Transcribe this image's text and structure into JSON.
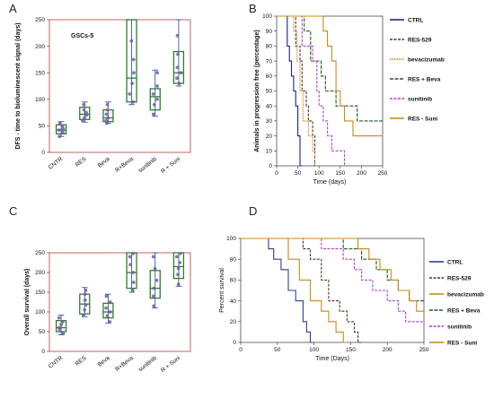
{
  "panels": {
    "a": {
      "letter": "A"
    },
    "b": {
      "letter": "B"
    },
    "c": {
      "letter": "C"
    },
    "d": {
      "letter": "D"
    }
  },
  "chart_data": [
    {
      "id": "A",
      "type": "box",
      "title": "GSCs-5",
      "ylabel": "DFS - time to bioluminescent signal (days)",
      "ylim": [
        0,
        250
      ],
      "yticks": [
        0,
        50,
        100,
        150,
        200,
        250
      ],
      "categories": [
        "CNTR",
        "RES",
        "Beva",
        "R+Beva",
        "sunitinib",
        "R + Suni"
      ],
      "boxes": [
        {
          "min": 30,
          "q1": 35,
          "median": 42,
          "q3": 52,
          "max": 58
        },
        {
          "min": 57,
          "q1": 62,
          "median": 72,
          "q3": 85,
          "max": 95
        },
        {
          "min": 55,
          "q1": 58,
          "median": 65,
          "q3": 80,
          "max": 95
        },
        {
          "min": 90,
          "q1": 95,
          "median": 140,
          "q3": 250,
          "max": 250
        },
        {
          "min": 68,
          "q1": 80,
          "median": 105,
          "q3": 120,
          "max": 155
        },
        {
          "min": 125,
          "q1": 130,
          "median": 150,
          "q3": 190,
          "max": 250
        }
      ],
      "points": [
        [
          30,
          38,
          42,
          45,
          50,
          55
        ],
        [
          60,
          65,
          70,
          75,
          80,
          90
        ],
        [
          55,
          60,
          65,
          72,
          80,
          90
        ],
        [
          95,
          110,
          130,
          150,
          175,
          210
        ],
        [
          72,
          90,
          100,
          110,
          125,
          150
        ],
        [
          130,
          140,
          150,
          160,
          185,
          220
        ]
      ],
      "box_color": "#2e7d32",
      "point_color": "#7b5aa6",
      "whisker_color": "#2a5db0"
    },
    {
      "id": "B",
      "type": "line",
      "step": true,
      "xlabel": "Time (days)",
      "ylabel": "Animals in progression free (percentage)",
      "xlim": [
        0,
        250
      ],
      "ylim": [
        0,
        100
      ],
      "xticks": [
        0,
        50,
        100,
        150,
        200,
        250
      ],
      "yticks": [
        0,
        10,
        20,
        30,
        40,
        50,
        60,
        70,
        80,
        90,
        100
      ],
      "legend_position": "right",
      "series": [
        {
          "name": "CTRL",
          "color": "#1a237e",
          "dash": "",
          "points": [
            [
              0,
              100
            ],
            [
              25,
              100
            ],
            [
              25,
              80
            ],
            [
              30,
              80
            ],
            [
              30,
              70
            ],
            [
              35,
              70
            ],
            [
              35,
              60
            ],
            [
              40,
              60
            ],
            [
              40,
              50
            ],
            [
              45,
              50
            ],
            [
              45,
              40
            ],
            [
              50,
              40
            ],
            [
              50,
              20
            ],
            [
              55,
              20
            ],
            [
              55,
              0
            ],
            [
              60,
              0
            ]
          ]
        },
        {
          "name": "RES-529",
          "color": "#4e342e",
          "dash": "3,1.5",
          "points": [
            [
              0,
              100
            ],
            [
              45,
              100
            ],
            [
              45,
              80
            ],
            [
              55,
              80
            ],
            [
              55,
              70
            ],
            [
              60,
              70
            ],
            [
              60,
              50
            ],
            [
              70,
              50
            ],
            [
              70,
              40
            ],
            [
              75,
              40
            ],
            [
              75,
              30
            ],
            [
              85,
              30
            ],
            [
              85,
              20
            ],
            [
              90,
              20
            ],
            [
              90,
              0
            ],
            [
              95,
              0
            ]
          ]
        },
        {
          "name": "bevacizumab",
          "color": "#c98a1a",
          "dash": "1.5,1",
          "points": [
            [
              0,
              100
            ],
            [
              40,
              100
            ],
            [
              40,
              90
            ],
            [
              48,
              90
            ],
            [
              48,
              70
            ],
            [
              55,
              70
            ],
            [
              55,
              50
            ],
            [
              62,
              50
            ],
            [
              62,
              30
            ],
            [
              75,
              30
            ],
            [
              75,
              20
            ],
            [
              85,
              20
            ],
            [
              85,
              10
            ],
            [
              90,
              10
            ],
            [
              90,
              0
            ],
            [
              95,
              0
            ]
          ]
        },
        {
          "name": "RES + Beva",
          "color": "#1b5e20",
          "dash": "4,1.5",
          "points": [
            [
              0,
              100
            ],
            [
              65,
              100
            ],
            [
              65,
              90
            ],
            [
              80,
              90
            ],
            [
              80,
              70
            ],
            [
              105,
              70
            ],
            [
              105,
              60
            ],
            [
              115,
              60
            ],
            [
              115,
              50
            ],
            [
              140,
              50
            ],
            [
              140,
              40
            ],
            [
              190,
              40
            ],
            [
              190,
              30
            ],
            [
              250,
              30
            ]
          ]
        },
        {
          "name": "sunitinib",
          "color": "#b43bd8",
          "dash": "3,1.5",
          "points": [
            [
              0,
              100
            ],
            [
              60,
              100
            ],
            [
              60,
              80
            ],
            [
              85,
              80
            ],
            [
              85,
              70
            ],
            [
              95,
              70
            ],
            [
              95,
              50
            ],
            [
              100,
              50
            ],
            [
              100,
              40
            ],
            [
              110,
              40
            ],
            [
              110,
              30
            ],
            [
              120,
              30
            ],
            [
              120,
              20
            ],
            [
              130,
              20
            ],
            [
              130,
              10
            ],
            [
              160,
              10
            ],
            [
              160,
              0
            ]
          ]
        },
        {
          "name": "RES - Suni",
          "color": "#c98a1a",
          "dash": "",
          "points": [
            [
              0,
              100
            ],
            [
              110,
              100
            ],
            [
              110,
              90
            ],
            [
              120,
              90
            ],
            [
              120,
              80
            ],
            [
              130,
              80
            ],
            [
              130,
              70
            ],
            [
              140,
              70
            ],
            [
              140,
              50
            ],
            [
              150,
              50
            ],
            [
              150,
              40
            ],
            [
              160,
              40
            ],
            [
              160,
              30
            ],
            [
              180,
              30
            ],
            [
              180,
              20
            ],
            [
              250,
              20
            ]
          ]
        }
      ]
    },
    {
      "id": "C",
      "type": "box",
      "title": "",
      "ylabel": "Overall survival (days)",
      "ylim": [
        0,
        250
      ],
      "yticks": [
        0,
        50,
        100,
        150,
        200,
        250
      ],
      "categories": [
        "CNTR",
        "RES",
        "Beva",
        "R+Beva",
        "sunitinib",
        "R + Suni"
      ],
      "boxes": [
        {
          "min": 42,
          "q1": 50,
          "median": 60,
          "q3": 78,
          "max": 92
        },
        {
          "min": 88,
          "q1": 95,
          "median": 120,
          "q3": 145,
          "max": 162
        },
        {
          "min": 72,
          "q1": 85,
          "median": 100,
          "q3": 122,
          "max": 145
        },
        {
          "min": 150,
          "q1": 160,
          "median": 200,
          "q3": 250,
          "max": 250
        },
        {
          "min": 110,
          "q1": 135,
          "median": 160,
          "q3": 205,
          "max": 250
        },
        {
          "min": 165,
          "q1": 185,
          "median": 215,
          "q3": 250,
          "max": 250
        }
      ],
      "points": [
        [
          45,
          55,
          60,
          68,
          75,
          85
        ],
        [
          92,
          105,
          118,
          130,
          145,
          155
        ],
        [
          75,
          90,
          100,
          110,
          125,
          140
        ],
        [
          155,
          175,
          200,
          220,
          240,
          248
        ],
        [
          115,
          140,
          160,
          180,
          210,
          240
        ],
        [
          170,
          195,
          210,
          225,
          240,
          248
        ]
      ],
      "box_color": "#2e7d32",
      "point_color": "#7b5aa6",
      "whisker_color": "#2a5db0"
    },
    {
      "id": "D",
      "type": "line",
      "step": true,
      "xlabel": "Time (Days)",
      "ylabel": "Percent survival",
      "xlim": [
        0,
        250
      ],
      "ylim": [
        0,
        100
      ],
      "xticks": [
        0,
        50,
        100,
        150,
        200,
        250
      ],
      "yticks": [
        0,
        20,
        40,
        60,
        80,
        100
      ],
      "legend_position": "right",
      "series": [
        {
          "name": "CTRL",
          "color": "#303f9f",
          "dash": "",
          "points": [
            [
              0,
              100
            ],
            [
              38,
              100
            ],
            [
              38,
              90
            ],
            [
              45,
              90
            ],
            [
              45,
              80
            ],
            [
              55,
              80
            ],
            [
              55,
              70
            ],
            [
              65,
              70
            ],
            [
              65,
              50
            ],
            [
              75,
              50
            ],
            [
              75,
              40
            ],
            [
              85,
              40
            ],
            [
              85,
              20
            ],
            [
              90,
              20
            ],
            [
              90,
              10
            ],
            [
              95,
              10
            ],
            [
              95,
              0
            ],
            [
              100,
              0
            ]
          ]
        },
        {
          "name": "RES-529",
          "color": "#5d2f1f",
          "dash": "3,1.5",
          "points": [
            [
              0,
              100
            ],
            [
              85,
              100
            ],
            [
              85,
              90
            ],
            [
              95,
              90
            ],
            [
              95,
              80
            ],
            [
              110,
              80
            ],
            [
              110,
              60
            ],
            [
              120,
              60
            ],
            [
              120,
              40
            ],
            [
              135,
              40
            ],
            [
              135,
              30
            ],
            [
              145,
              30
            ],
            [
              145,
              20
            ],
            [
              155,
              20
            ],
            [
              155,
              10
            ],
            [
              160,
              10
            ],
            [
              160,
              0
            ],
            [
              165,
              0
            ]
          ]
        },
        {
          "name": "bevacizumab",
          "color": "#c98a1a",
          "dash": "",
          "points": [
            [
              0,
              100
            ],
            [
              65,
              100
            ],
            [
              65,
              80
            ],
            [
              80,
              80
            ],
            [
              80,
              60
            ],
            [
              95,
              60
            ],
            [
              95,
              40
            ],
            [
              110,
              40
            ],
            [
              110,
              30
            ],
            [
              120,
              30
            ],
            [
              120,
              20
            ],
            [
              130,
              20
            ],
            [
              130,
              10
            ],
            [
              140,
              10
            ],
            [
              140,
              0
            ],
            [
              145,
              0
            ]
          ]
        },
        {
          "name": "RES + Beva",
          "color": "#1b5e20",
          "dash": "4,1.5",
          "points": [
            [
              0,
              100
            ],
            [
              140,
              100
            ],
            [
              140,
              90
            ],
            [
              165,
              90
            ],
            [
              165,
              80
            ],
            [
              185,
              80
            ],
            [
              185,
              70
            ],
            [
              200,
              70
            ],
            [
              200,
              60
            ],
            [
              215,
              60
            ],
            [
              215,
              50
            ],
            [
              230,
              50
            ],
            [
              230,
              40
            ],
            [
              250,
              40
            ]
          ]
        },
        {
          "name": "sunitinib",
          "color": "#b43bd8",
          "dash": "3,1.5",
          "points": [
            [
              0,
              100
            ],
            [
              110,
              100
            ],
            [
              110,
              90
            ],
            [
              140,
              90
            ],
            [
              140,
              80
            ],
            [
              155,
              80
            ],
            [
              155,
              70
            ],
            [
              165,
              70
            ],
            [
              165,
              60
            ],
            [
              180,
              60
            ],
            [
              180,
              50
            ],
            [
              200,
              50
            ],
            [
              200,
              40
            ],
            [
              215,
              40
            ],
            [
              215,
              30
            ],
            [
              225,
              30
            ],
            [
              225,
              20
            ],
            [
              250,
              20
            ]
          ]
        },
        {
          "name": "RES - Suni",
          "color": "#c98a1a",
          "dash": "",
          "points": [
            [
              0,
              100
            ],
            [
              160,
              100
            ],
            [
              160,
              90
            ],
            [
              175,
              90
            ],
            [
              175,
              80
            ],
            [
              190,
              80
            ],
            [
              190,
              70
            ],
            [
              205,
              70
            ],
            [
              205,
              60
            ],
            [
              215,
              60
            ],
            [
              215,
              50
            ],
            [
              230,
              50
            ],
            [
              230,
              40
            ],
            [
              240,
              40
            ],
            [
              240,
              30
            ],
            [
              250,
              30
            ]
          ]
        }
      ]
    }
  ]
}
